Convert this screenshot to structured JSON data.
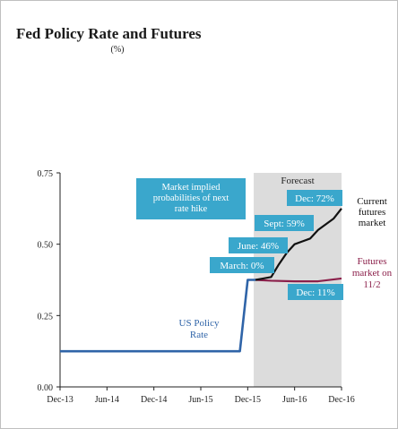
{
  "chart_data": {
    "type": "line",
    "title": "Fed Policy Rate and Futures",
    "subtitle": "(%)",
    "xlabel": "",
    "ylabel": "",
    "ylim": [
      0,
      0.75
    ],
    "grid": false,
    "x_tick_labels": [
      "Dec-13",
      "Jun-14",
      "Dec-14",
      "Jun-15",
      "Dec-15",
      "Jun-16",
      "Dec-16"
    ],
    "y_tick_labels": [
      "0.00",
      "0.25",
      "0.50",
      "0.75"
    ],
    "y_ticks": [
      0,
      0.25,
      0.5,
      0.75
    ],
    "forecast_region": {
      "label": "Forecast",
      "from": "2016-01",
      "to": "2016-12"
    },
    "series": [
      {
        "name": "US Policy Rate",
        "label": "US Policy\nRate",
        "color": "#2f64a8",
        "points": [
          [
            "2013-12",
            0.125
          ],
          [
            "2015-11",
            0.125
          ],
          [
            "2015-12",
            0.375
          ],
          [
            "2016-01",
            0.375
          ]
        ]
      },
      {
        "name": "Current futures market",
        "label": "Current\nfutures\nmarket",
        "color": "#111111",
        "points": [
          [
            "2016-01",
            0.375
          ],
          [
            "2016-02",
            0.38
          ],
          [
            "2016-03",
            0.385
          ],
          [
            "2016-04",
            0.43
          ],
          [
            "2016-05",
            0.47
          ],
          [
            "2016-06",
            0.5
          ],
          [
            "2016-07",
            0.51
          ],
          [
            "2016-08",
            0.52
          ],
          [
            "2016-09",
            0.55
          ],
          [
            "2016-10",
            0.57
          ],
          [
            "2016-11",
            0.59
          ],
          [
            "2016-12",
            0.625
          ]
        ]
      },
      {
        "name": "Futures market on 11/2",
        "label": "Futures\nmarket on\n11/2",
        "color": "#8b1f4a",
        "points": [
          [
            "2016-01",
            0.375
          ],
          [
            "2016-03",
            0.372
          ],
          [
            "2016-06",
            0.37
          ],
          [
            "2016-09",
            0.37
          ],
          [
            "2016-12",
            0.38
          ]
        ]
      }
    ],
    "annotations": {
      "box_title": "Market implied\nprobabilities of next\nrate hike",
      "labels": [
        {
          "text": "March: 0%",
          "x": "2016-01",
          "y": 0.375
        },
        {
          "text": "June: 46%",
          "x": "2016-03",
          "y": 0.425
        },
        {
          "text": "Sept: 59%",
          "x": "2016-06",
          "y": 0.5
        },
        {
          "text": "Dec: 72%",
          "x": "2016-09",
          "y": 0.59
        },
        {
          "text": "Dec: 11%",
          "x": "2016-09",
          "y": 0.37
        }
      ],
      "colors": {
        "box": "#3aa7cc",
        "box_text": "#ffffff",
        "forecast_shade": "#dcdcdc"
      }
    }
  }
}
